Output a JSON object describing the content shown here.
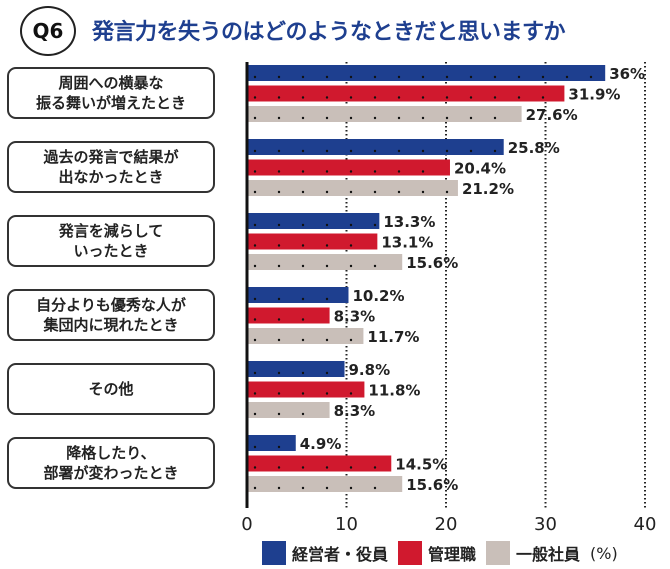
{
  "header": {
    "badge": "Q6",
    "title": "発言力を失うのはどのようなときだと思いますか"
  },
  "chart_data": {
    "type": "bar",
    "orientation": "horizontal",
    "title": "発言力を失うのはどのようなときだと思いますか",
    "categories": [
      "周囲への横暴な\n振る舞いが増えたとき",
      "過去の発言で結果が\n出なかったとき",
      "発言を減らして\nいったとき",
      "自分よりも優秀な人が\n集団内に現れたとき",
      "その他",
      "降格したり、\n部署が変わったとき"
    ],
    "series": [
      {
        "name": "経営者・役員",
        "color": "#1e3f8f",
        "values": [
          36,
          25.8,
          13.3,
          10.2,
          9.8,
          4.9
        ],
        "labels": [
          "36%",
          "25.8%",
          "13.3%",
          "10.2%",
          "9.8%",
          "4.9%"
        ]
      },
      {
        "name": "管理職",
        "color": "#d0192e",
        "values": [
          31.9,
          20.4,
          13.1,
          8.3,
          11.8,
          14.5
        ],
        "labels": [
          "31.9%",
          "20.4%",
          "13.1%",
          "8.3%",
          "11.8%",
          "14.5%"
        ]
      },
      {
        "name": "一般社員",
        "color": "#c9bfb9",
        "values": [
          27.6,
          21.2,
          15.6,
          11.7,
          8.3,
          15.6
        ],
        "labels": [
          "27.6%",
          "21.2%",
          "15.6%",
          "11.7%",
          "8.3%",
          "15.6%"
        ]
      }
    ],
    "xlim": [
      0,
      40
    ],
    "xticks": [
      "0",
      "10",
      "20",
      "30",
      "40"
    ],
    "unit": "(%)",
    "grid": "vertical dotted",
    "legend": "bottom"
  }
}
